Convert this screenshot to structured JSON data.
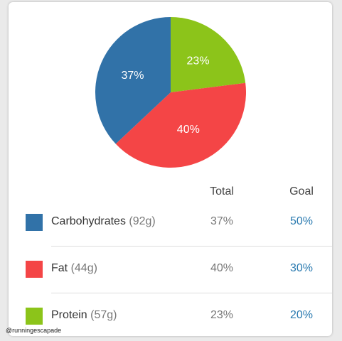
{
  "chart_data": {
    "type": "pie",
    "categories": [
      "Carbohydrates",
      "Fat",
      "Protein"
    ],
    "values": [
      37,
      40,
      23
    ],
    "value_labels": [
      "37%",
      "40%",
      "23%"
    ],
    "colors": [
      "#3172a8",
      "#f44546",
      "#8cc41a"
    ]
  },
  "table": {
    "headers": [
      "Total",
      "Goal"
    ],
    "rows": [
      {
        "amount": "(92g)",
        "goal": "50%"
      },
      {
        "amount": "(44g)",
        "goal": "30%"
      },
      {
        "amount": "(57g)",
        "goal": "20%"
      }
    ]
  },
  "watermark": "@runningescapade"
}
